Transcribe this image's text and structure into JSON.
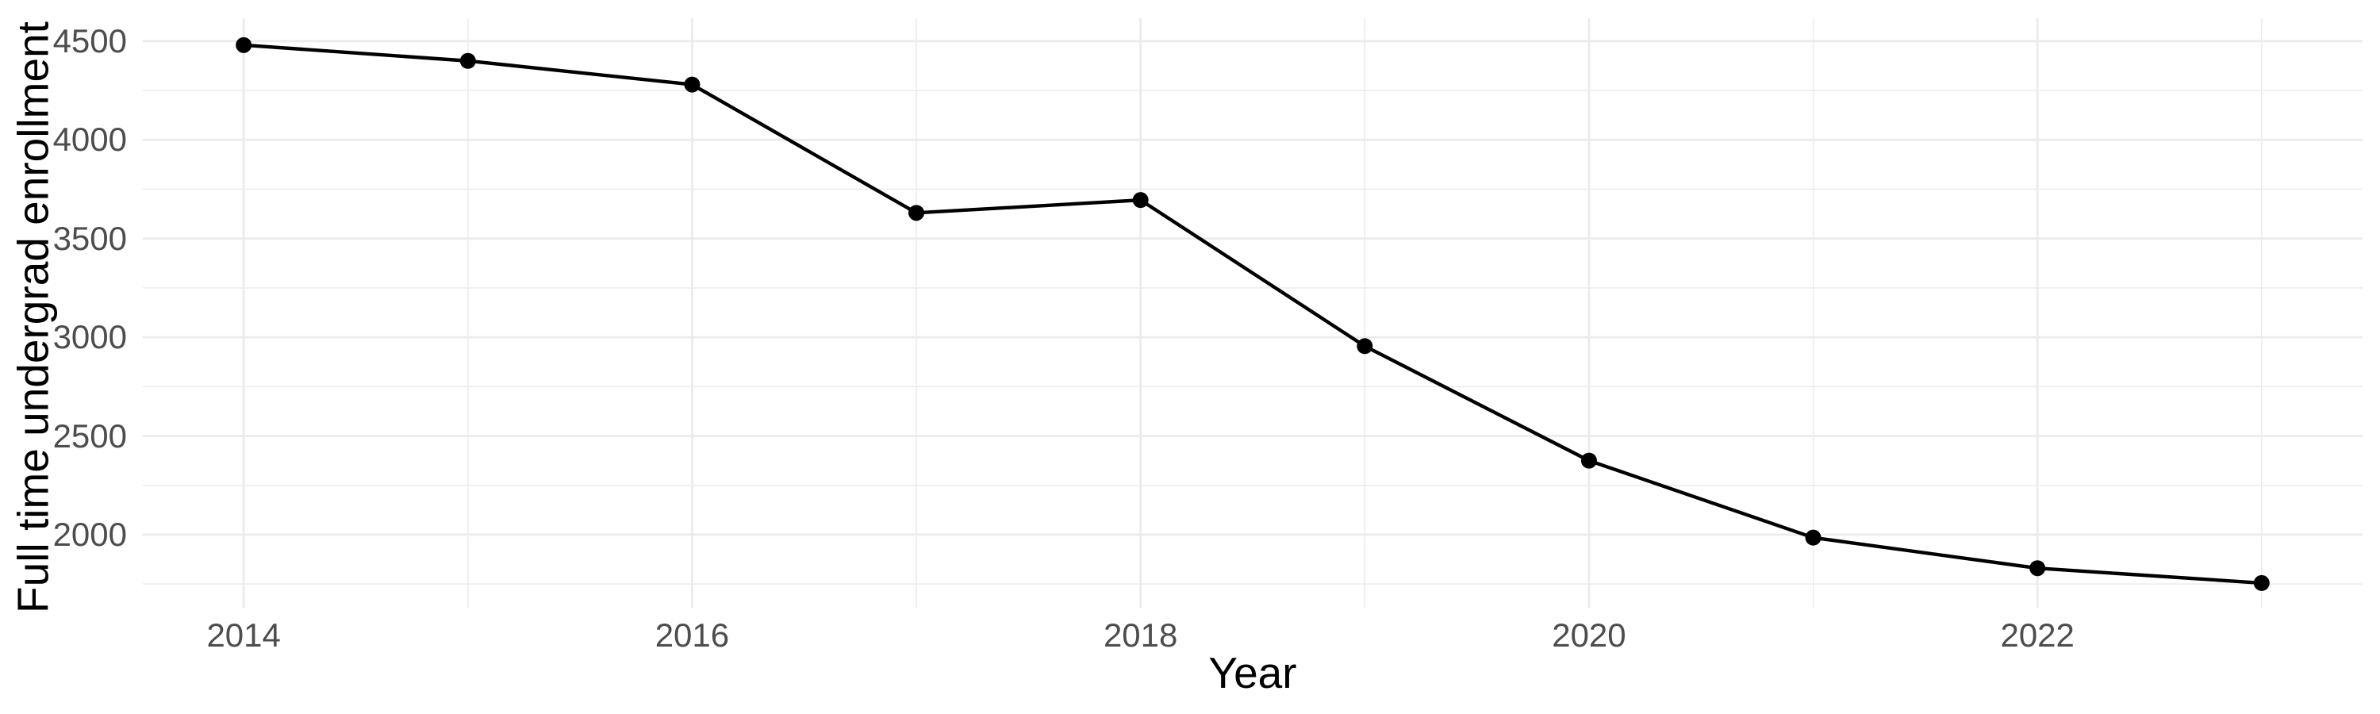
{
  "figure": {
    "background_color": "#FFFFFF"
  },
  "chart_data": {
    "type": "line",
    "title": "",
    "xlabel": "Year",
    "ylabel": "Full time undergrad enrollment",
    "x": [
      2014,
      2015,
      2016,
      2017,
      2018,
      2019,
      2020,
      2021,
      2022,
      2023
    ],
    "series": [
      {
        "name": "Full time undergrad enrollment",
        "values": [
          4480,
          4400,
          4280,
          3630,
          3695,
          2955,
          2375,
          1985,
          1830,
          1755
        ]
      }
    ],
    "xlim": [
      2013.55,
      2023.45
    ],
    "ylim": [
      1630,
      4616
    ],
    "x_major_ticks": [
      2014,
      2016,
      2018,
      2020,
      2022
    ],
    "x_minor_gridlines": [
      2015,
      2017,
      2019,
      2021,
      2023
    ],
    "y_major_ticks": [
      2000,
      2500,
      3000,
      3500,
      4000,
      4500
    ],
    "y_minor_gridlines": [
      1750,
      2250,
      2750,
      3250,
      3750,
      4250
    ],
    "grid": "on",
    "legend": "none",
    "colors": {
      "line": "#000000",
      "point": "#000000",
      "gridline": "#EBEBEB",
      "tick_label": "#4D4D4D",
      "axis_title": "#000000"
    }
  }
}
